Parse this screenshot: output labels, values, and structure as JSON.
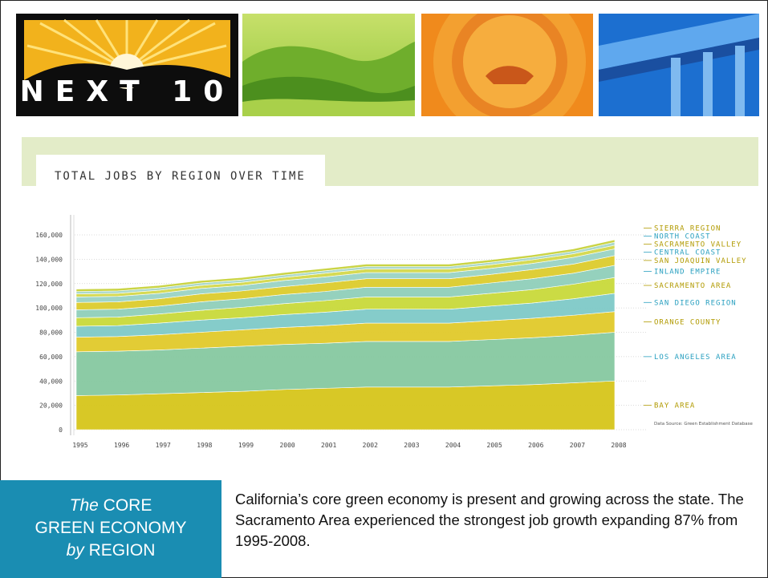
{
  "slide": {
    "logo_text": "NEXT 10",
    "chart_heading": "TOTAL JOBS BY REGION OVER TIME",
    "box_line1_italic": "The",
    "box_line1": "CORE",
    "box_line2": "GREEN ECONOMY",
    "box_line3_italic": "by",
    "box_line3": "REGION",
    "body": "California’s core green economy is present and growing across the state.  The Sacramento Area experienced the strongest job growth expanding 87% from 1995-2008."
  },
  "chart_data": {
    "type": "area",
    "stacked": true,
    "title": "TOTAL JOBS BY REGION OVER TIME",
    "source_note": "Data Source: Green Establishment Database",
    "x": [
      1995,
      1996,
      1997,
      1998,
      1999,
      2000,
      2001,
      2002,
      2003,
      2004,
      2005,
      2006,
      2007,
      2008
    ],
    "ylim": [
      0,
      160000
    ],
    "yticks": [
      0,
      20000,
      40000,
      60000,
      80000,
      100000,
      120000,
      140000,
      160000
    ],
    "ytick_labels": [
      "0",
      "20,000",
      "40,000",
      "60,000",
      "80,000",
      "100,000",
      "120,000",
      "140,000",
      "160,000"
    ],
    "grid": true,
    "legend": "right, labels at series ends",
    "series": [
      {
        "name": "BAY AREA",
        "color": "#d6c51a",
        "values": [
          28000,
          28500,
          29500,
          30500,
          31500,
          33000,
          34000,
          35000,
          35000,
          35000,
          36000,
          37000,
          38500,
          40000
        ]
      },
      {
        "name": "LOS ANGELES AREA",
        "color": "#86c8a0",
        "values": [
          36000,
          36000,
          36000,
          36500,
          37000,
          37000,
          37000,
          37500,
          37500,
          37500,
          38000,
          38500,
          39000,
          40000
        ]
      },
      {
        "name": "ORANGE COUNTY",
        "color": "#e0c92a",
        "values": [
          12000,
          12000,
          12500,
          13000,
          13500,
          14000,
          14500,
          15000,
          15000,
          15000,
          15500,
          16000,
          16500,
          17000
        ]
      },
      {
        "name": "SAN DIEGO REGION",
        "color": "#7ec9c7",
        "values": [
          9000,
          9000,
          9500,
          10000,
          10000,
          10500,
          11000,
          11500,
          11500,
          11500,
          12000,
          12500,
          13500,
          15000
        ]
      },
      {
        "name": "SACRAMENTO AREA",
        "color": "#c8d93a",
        "values": [
          7000,
          7000,
          7500,
          8000,
          8500,
          9000,
          9500,
          10000,
          10000,
          10000,
          10500,
          11000,
          12000,
          13000
        ]
      },
      {
        "name": "INLAND EMPIRE",
        "color": "#8fcfb9",
        "values": [
          6500,
          6500,
          6500,
          7000,
          7000,
          7500,
          7500,
          8000,
          8000,
          8000,
          8500,
          9000,
          9000,
          10000
        ]
      },
      {
        "name": "SAN JOAQUIN VALLEY",
        "color": "#dccb2c",
        "values": [
          6000,
          6000,
          6000,
          6500,
          6500,
          6500,
          7000,
          7000,
          7000,
          7000,
          7000,
          7500,
          7500,
          8000
        ]
      },
      {
        "name": "CENTRAL COAST",
        "color": "#9ad3c4",
        "values": [
          4500,
          4500,
          4500,
          4500,
          4500,
          5000,
          5000,
          5000,
          5000,
          5000,
          5000,
          5000,
          5500,
          5500
        ]
      },
      {
        "name": "SACRAMENTO VALLEY",
        "color": "#d4d84a",
        "values": [
          2500,
          2500,
          2500,
          2500,
          2500,
          2500,
          3000,
          3000,
          3000,
          3000,
          3000,
          3000,
          3000,
          3000
        ]
      },
      {
        "name": "NORTH COAST",
        "color": "#a6d7c9",
        "values": [
          2000,
          2000,
          2000,
          2000,
          2000,
          2000,
          2000,
          2000,
          2000,
          2000,
          2000,
          2000,
          2000,
          2500
        ]
      },
      {
        "name": "SIERRA REGION",
        "color": "#c7d23b",
        "values": [
          2000,
          2000,
          2000,
          2000,
          2000,
          2000,
          2000,
          2000,
          2000,
          2000,
          2000,
          2000,
          2000,
          2000
        ]
      }
    ]
  }
}
